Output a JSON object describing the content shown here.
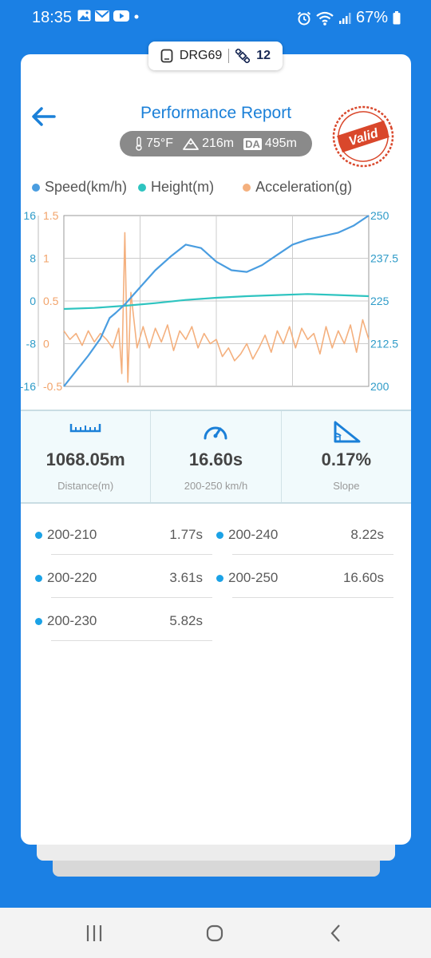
{
  "status": {
    "time": "18:35",
    "battery": "67%"
  },
  "device": {
    "name": "DRG69",
    "satellites": "12"
  },
  "header": {
    "title": "Performance Report",
    "stamp": "Valid"
  },
  "conditions": {
    "temperature": "75°F",
    "altitude": "216m",
    "da_label": "DA",
    "density_altitude": "495m"
  },
  "legend": [
    {
      "label": "Speed(km/h)",
      "color": "#4a9de0"
    },
    {
      "label": "Height(m)",
      "color": "#2ec4c0"
    },
    {
      "label": "Acceleration(g)",
      "color": "#f4b07e"
    }
  ],
  "chart_data": {
    "type": "line",
    "axes": {
      "height_axis_ticks": [
        "16",
        "8",
        "0",
        "-8",
        "-16"
      ],
      "accel_axis_ticks": [
        "1.5",
        "1",
        "0.5",
        "0",
        "-0.5"
      ],
      "speed_axis_ticks": [
        "250",
        "237.5",
        "225",
        "212.5",
        "200"
      ]
    },
    "series": [
      {
        "name": "Speed(km/h)",
        "color": "#4a9de0",
        "axis": "speed",
        "ylim": [
          200,
          250
        ],
        "x": [
          0,
          4,
          8,
          12,
          15,
          17,
          20,
          25,
          30,
          35,
          40,
          45,
          50,
          55,
          60,
          65,
          70,
          75,
          80,
          85,
          90,
          95,
          100
        ],
        "values": [
          200,
          204.5,
          209,
          214,
          220,
          221.5,
          224,
          229,
          234,
          238,
          241.5,
          240.5,
          236.5,
          234,
          233.5,
          235.5,
          238.5,
          241.5,
          243,
          244,
          245,
          247,
          250
        ]
      },
      {
        "name": "Height(m)",
        "color": "#2ec4c0",
        "axis": "height",
        "ylim": [
          -16,
          16
        ],
        "x": [
          0,
          10,
          20,
          30,
          40,
          50,
          60,
          70,
          80,
          90,
          100
        ],
        "values": [
          -1.5,
          -1.3,
          -0.9,
          -0.4,
          0.2,
          0.6,
          0.9,
          1.1,
          1.3,
          1.1,
          0.9
        ]
      },
      {
        "name": "Acceleration(g)",
        "color": "#f4b07e",
        "axis": "acceleration",
        "ylim": [
          -0.5,
          1.5
        ],
        "x": [
          0,
          2,
          4,
          6,
          8,
          10,
          12,
          14,
          16,
          18,
          19,
          20,
          21,
          22,
          24,
          26,
          28,
          30,
          32,
          34,
          36,
          38,
          40,
          42,
          44,
          46,
          48,
          50,
          52,
          54,
          56,
          58,
          60,
          62,
          64,
          66,
          68,
          70,
          72,
          74,
          76,
          78,
          80,
          82,
          84,
          86,
          88,
          90,
          92,
          94,
          96,
          98,
          100
        ],
        "values": [
          0.15,
          0.05,
          0.12,
          -0.02,
          0.15,
          0.02,
          0.12,
          0.05,
          -0.05,
          0.18,
          -0.35,
          1.3,
          -0.45,
          0.6,
          -0.05,
          0.2,
          -0.05,
          0.18,
          0.02,
          0.22,
          -0.08,
          0.15,
          0.05,
          0.2,
          -0.05,
          0.12,
          0.0,
          0.05,
          -0.15,
          -0.05,
          -0.2,
          -0.12,
          0.0,
          -0.18,
          -0.05,
          0.1,
          -0.1,
          0.15,
          0.0,
          0.2,
          -0.05,
          0.18,
          0.05,
          0.12,
          -0.12,
          0.2,
          -0.05,
          0.15,
          0.0,
          0.22,
          -0.1,
          0.28,
          0.05
        ]
      }
    ],
    "xlim": [
      0,
      100
    ],
    "grid": true
  },
  "stats": {
    "distance_value": "1068.05m",
    "distance_label": "Distance(m)",
    "time_value": "16.60s",
    "time_label": "200-250 km/h",
    "slope_value": "0.17%",
    "slope_label": "Slope"
  },
  "splits": [
    {
      "range": "200-210",
      "time": "1.77s"
    },
    {
      "range": "200-220",
      "time": "3.61s"
    },
    {
      "range": "200-230",
      "time": "5.82s"
    },
    {
      "range": "200-240",
      "time": "8.22s"
    },
    {
      "range": "200-250",
      "time": "16.60s"
    }
  ]
}
